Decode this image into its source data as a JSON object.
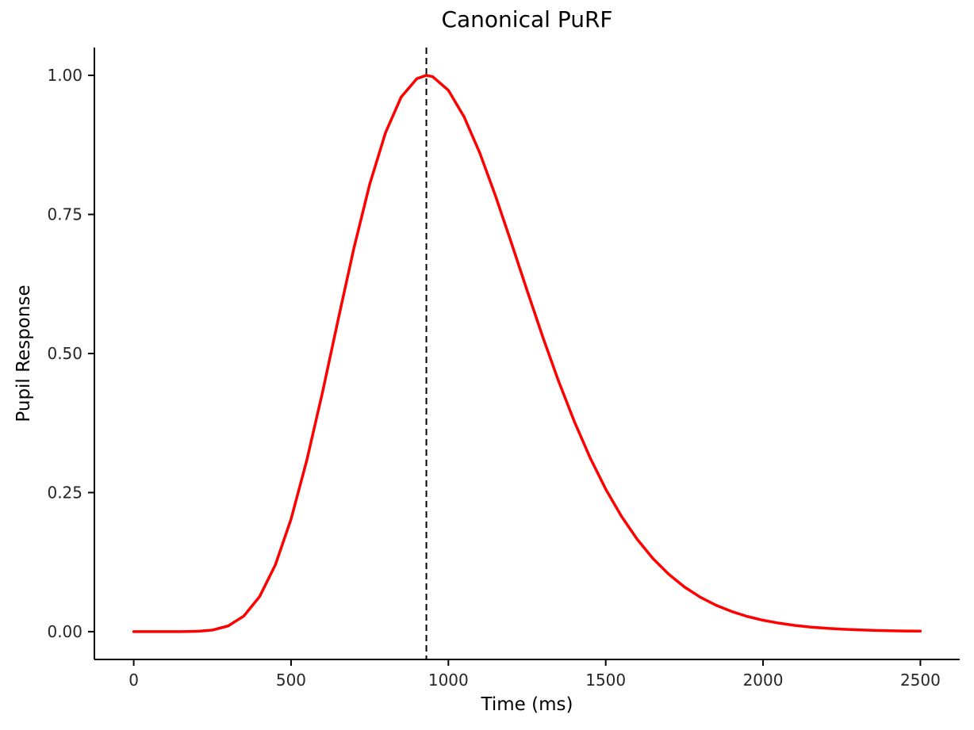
{
  "figure": {
    "background": "#ffffff"
  },
  "chart_data": {
    "type": "line",
    "title": "Canonical PuRF",
    "xlabel": "Time (ms)",
    "ylabel": "Pupil Response",
    "xlim": [
      0,
      2500
    ],
    "ylim": [
      0,
      1.0
    ],
    "grid": false,
    "legend": null,
    "axis_color": "#000000",
    "tick_label_color": "#262626",
    "x_ticks": {
      "values": [
        0,
        500,
        1000,
        1500,
        2000,
        2500
      ],
      "labels": [
        "0",
        "500",
        "1000",
        "1500",
        "2000",
        "2500"
      ]
    },
    "y_ticks": {
      "values": [
        0,
        0.25,
        0.5,
        0.75,
        1.0
      ],
      "labels": [
        "0.00",
        "0.25",
        "0.50",
        "0.75",
        "1.00"
      ]
    },
    "series": [
      {
        "name": "canonical-purf",
        "color": "#ff0000",
        "line_width": 3.5,
        "x": [
          0,
          50,
          100,
          150,
          200,
          250,
          300,
          350,
          400,
          450,
          500,
          550,
          600,
          650,
          700,
          750,
          800,
          850,
          900,
          930,
          950,
          1000,
          1050,
          1100,
          1150,
          1200,
          1250,
          1300,
          1350,
          1400,
          1450,
          1500,
          1550,
          1600,
          1650,
          1700,
          1750,
          1800,
          1850,
          1900,
          1950,
          2000,
          2050,
          2100,
          2150,
          2200,
          2250,
          2300,
          2350,
          2400,
          2450,
          2500
        ],
        "y": [
          0,
          0,
          0,
          0.0001,
          0.0005,
          0.0028,
          0.0102,
          0.0281,
          0.063,
          0.1199,
          0.2023,
          0.308,
          0.4304,
          0.5618,
          0.69,
          0.8044,
          0.8967,
          0.9611,
          0.9942,
          1.0,
          0.9977,
          0.9732,
          0.9254,
          0.8602,
          0.7829,
          0.6992,
          0.6136,
          0.5297,
          0.4506,
          0.3781,
          0.313,
          0.2562,
          0.2073,
          0.166,
          0.1315,
          0.1034,
          0.0804,
          0.0621,
          0.0476,
          0.0363,
          0.0273,
          0.0205,
          0.0153,
          0.0113,
          0.0083,
          0.0061,
          0.0045,
          0.0032,
          0.0023,
          0.0017,
          0.0012,
          0.0009
        ]
      }
    ],
    "annotations": [
      {
        "type": "vline",
        "x": 930,
        "style": "dashed",
        "color": "#000000",
        "line_width": 2
      }
    ]
  }
}
